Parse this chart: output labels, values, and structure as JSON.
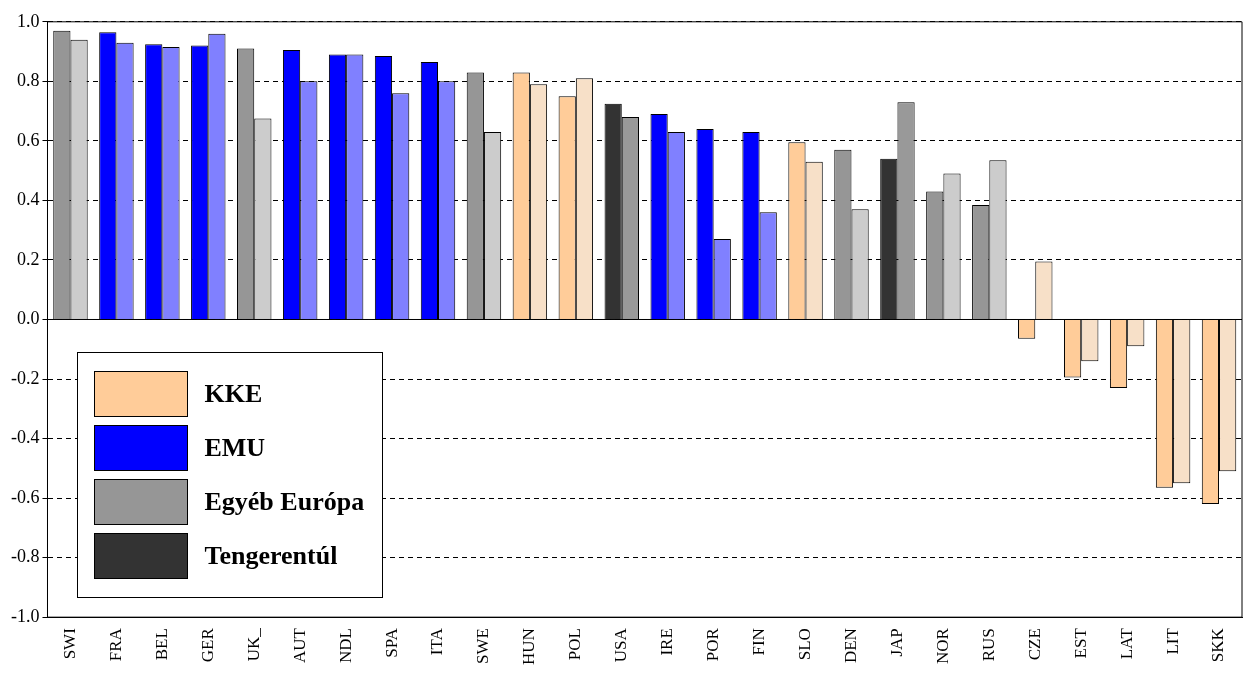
{
  "chart_data": {
    "type": "bar",
    "categories": [
      "SWI",
      "FRA",
      "BEL",
      "GER",
      "UK_",
      "AUT",
      "NDL",
      "SPA",
      "ITA",
      "SWE",
      "HUN",
      "POL",
      "USA",
      "IRE",
      "POR",
      "FIN",
      "SLO",
      "DEN",
      "JAP",
      "NOR",
      "RUS",
      "CZE",
      "EST",
      "LAT",
      "LIT",
      "SKK"
    ],
    "series": [
      {
        "name": "KKE",
        "color": "#ffcc99",
        "values": [
          null,
          null,
          null,
          null,
          null,
          null,
          null,
          null,
          null,
          null,
          0.83,
          0.75,
          null,
          null,
          null,
          null,
          0.595,
          null,
          null,
          null,
          null,
          -0.065,
          -0.195,
          -0.23,
          -0.565,
          -0.62
        ]
      },
      {
        "color": "#f7e0c8",
        "values": [
          null,
          null,
          null,
          null,
          null,
          null,
          null,
          null,
          null,
          null,
          0.79,
          0.81,
          null,
          null,
          null,
          null,
          0.53,
          null,
          null,
          null,
          null,
          0.195,
          -0.14,
          -0.09,
          -0.55,
          -0.51
        ]
      },
      {
        "name": "EMU",
        "color": "#0000ff",
        "values": [
          null,
          0.965,
          0.925,
          0.92,
          null,
          0.905,
          0.89,
          0.885,
          0.865,
          null,
          null,
          null,
          null,
          0.69,
          0.64,
          0.63,
          null,
          null,
          null,
          null,
          null,
          null,
          null,
          null,
          null,
          null
        ]
      },
      {
        "color": "#8080ff",
        "values": [
          null,
          0.93,
          0.915,
          0.96,
          null,
          0.8,
          0.89,
          0.76,
          0.8,
          null,
          null,
          null,
          null,
          0.63,
          0.27,
          0.36,
          null,
          null,
          null,
          null,
          null,
          null,
          null,
          null,
          null,
          null
        ]
      },
      {
        "name": "Egyéb Európa",
        "color": "#969696",
        "values": [
          0.97,
          null,
          null,
          null,
          0.91,
          null,
          null,
          null,
          null,
          0.83,
          null,
          null,
          null,
          null,
          null,
          null,
          null,
          0.57,
          null,
          0.43,
          0.385,
          null,
          null,
          null,
          null,
          null
        ]
      },
      {
        "color": "#cccccc",
        "values": [
          0.94,
          null,
          null,
          null,
          0.675,
          null,
          null,
          null,
          null,
          0.63,
          null,
          null,
          null,
          null,
          null,
          null,
          null,
          0.37,
          null,
          0.49,
          0.535,
          null,
          null,
          null,
          null,
          null
        ]
      },
      {
        "name": "Tengerentúl",
        "color": "#333333",
        "values": [
          null,
          null,
          null,
          null,
          null,
          null,
          null,
          null,
          null,
          null,
          null,
          null,
          0.725,
          null,
          null,
          null,
          null,
          null,
          0.54,
          null,
          null,
          null,
          null,
          null,
          null,
          null
        ]
      },
      {
        "color": "#999999",
        "values": [
          null,
          null,
          null,
          null,
          null,
          null,
          null,
          null,
          null,
          null,
          null,
          null,
          0.68,
          null,
          null,
          null,
          null,
          null,
          0.73,
          null,
          null,
          null,
          null,
          null,
          null,
          null
        ]
      }
    ],
    "ylim": [
      -1,
      1
    ],
    "yticks": [
      {
        "value": -1,
        "label": "-1.0"
      },
      {
        "value": -0.8,
        "label": "-0.8"
      },
      {
        "value": -0.6,
        "label": "-0.6"
      },
      {
        "value": -0.4,
        "label": "-0.4"
      },
      {
        "value": -0.2,
        "label": "-0.2"
      },
      {
        "value": 0,
        "label": "0.0"
      },
      {
        "value": 0.2,
        "label": "0.2"
      },
      {
        "value": 0.4,
        "label": "0.4"
      },
      {
        "value": 0.6,
        "label": "0.6"
      },
      {
        "value": 0.8,
        "label": "0.8"
      },
      {
        "value": 1,
        "label": "1.0"
      }
    ],
    "grid": "y",
    "legend": "bottom left"
  }
}
